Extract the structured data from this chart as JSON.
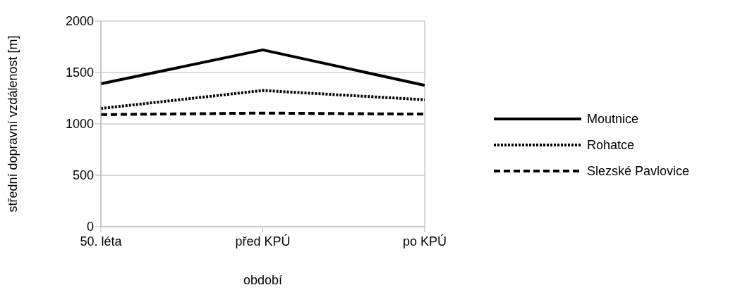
{
  "chart_data": {
    "type": "line",
    "xlabel": "období",
    "ylabel": "střední dopravní vzdálenost [m]",
    "categories": [
      "50. léta",
      "před KPÚ",
      "po KPÚ"
    ],
    "series": [
      {
        "name": "Moutnice",
        "color": "#000000",
        "line_style": "solid",
        "values": [
          1390,
          1720,
          1375
        ]
      },
      {
        "name": "Rohatce",
        "color": "#000000",
        "line_style": "dotted",
        "values": [
          1150,
          1325,
          1235
        ]
      },
      {
        "name": "Slezské Pavlovice",
        "color": "#000000",
        "line_style": "dashed",
        "values": [
          1090,
          1105,
          1095
        ]
      }
    ],
    "ylim": [
      0,
      2000
    ],
    "yticks": [
      0,
      500,
      1000,
      1500,
      2000
    ],
    "grid": "y",
    "legend": "right",
    "marker": "none"
  }
}
